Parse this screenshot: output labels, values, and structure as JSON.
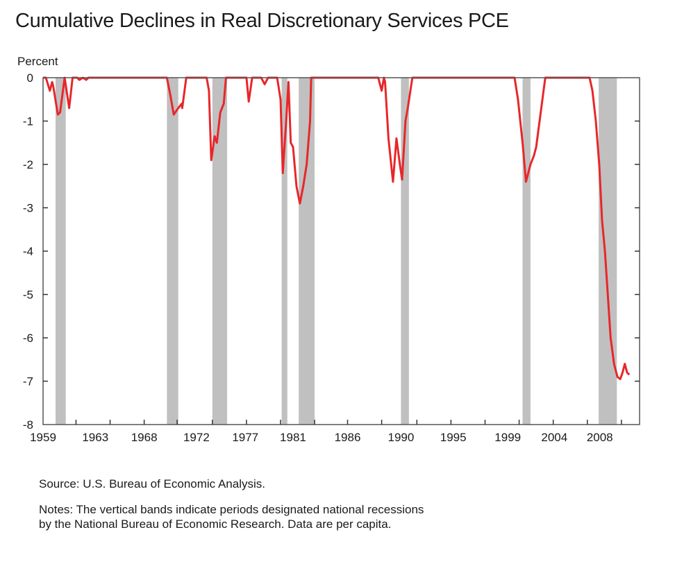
{
  "chart_data": {
    "type": "line",
    "title": "Cumulative Declines in Real Discretionary Services PCE",
    "ylabel": "Percent",
    "xlabel": "",
    "xlim": [
      1959.0,
      2011.5
    ],
    "ylim": [
      -8,
      0
    ],
    "yticks": [
      0,
      -1,
      -2,
      -3,
      -4,
      -5,
      -6,
      -7,
      -8
    ],
    "xtick_labels": [
      "1959",
      "1963",
      "1968",
      "1972",
      "1977",
      "1981",
      "1986",
      "1990",
      "1995",
      "1999",
      "2004",
      "2008"
    ],
    "xtick_label_positions": [
      1959.0,
      1963.6,
      1967.9,
      1972.5,
      1976.8,
      1981.0,
      1985.8,
      1990.5,
      1995.1,
      1999.9,
      2004.0,
      2008.0
    ],
    "xtick_marks": [
      1961.9,
      1964.9,
      1967.9,
      1970.8,
      1973.9,
      1976.9,
      1979.9,
      1982.9,
      1985.8,
      1988.8,
      1991.9,
      1994.9,
      1997.9,
      2000.9,
      2003.9,
      2006.9,
      2009.9
    ],
    "grid": false,
    "recessions": [
      [
        1960.1,
        1961.0
      ],
      [
        1969.9,
        1970.9
      ],
      [
        1973.9,
        1975.2
      ],
      [
        1980.0,
        1980.5
      ],
      [
        1981.5,
        1982.9
      ],
      [
        1990.5,
        1991.2
      ],
      [
        2001.2,
        2001.9
      ],
      [
        2007.9,
        2009.5
      ]
    ],
    "recession_color": "#c0c0c0",
    "series": [
      {
        "name": "Cumulative decline",
        "color": "#e8262a",
        "x": [
          1959.0,
          1959.25,
          1959.6,
          1959.8,
          1959.9,
          1960.3,
          1960.5,
          1960.9,
          1961.3,
          1961.6,
          1962.0,
          1962.2,
          1962.5,
          1962.8,
          1963.0,
          1969.9,
          1970.2,
          1970.5,
          1970.9,
          1971.2,
          1971.25,
          1971.6,
          1973.4,
          1973.6,
          1973.8,
          1974.1,
          1974.3,
          1974.6,
          1974.9,
          1975.1,
          1976.9,
          1977.1,
          1977.4,
          1978.2,
          1978.5,
          1978.8,
          1979.6,
          1979.9,
          1980.1,
          1980.4,
          1980.6,
          1980.8,
          1981.0,
          1981.3,
          1981.6,
          1981.9,
          1982.2,
          1982.5,
          1982.6,
          1988.5,
          1988.8,
          1989.0,
          1989.1,
          1989.4,
          1989.8,
          1990.1,
          1990.4,
          1990.6,
          1990.9,
          1991.1,
          1991.5,
          2000.5,
          2000.8,
          2001.2,
          2001.5,
          2001.9,
          2002.2,
          2002.4,
          2002.7,
          2003.2,
          2007.1,
          2007.35,
          2007.65,
          2007.95,
          2008.2,
          2008.45,
          2008.7,
          2008.95,
          2009.25,
          2009.55,
          2009.8,
          2010.0,
          2010.2,
          2010.4,
          2010.6
        ],
        "y": [
          0,
          0,
          -0.3,
          -0.1,
          -0.2,
          -0.85,
          -0.8,
          0,
          -0.7,
          0,
          0,
          -0.05,
          0,
          -0.05,
          0,
          0,
          -0.4,
          -0.85,
          -0.7,
          -0.6,
          -0.7,
          0,
          0,
          -0.3,
          -1.9,
          -1.35,
          -1.5,
          -0.8,
          -0.6,
          0,
          0,
          -0.55,
          0,
          0,
          -0.15,
          0,
          0,
          -0.5,
          -2.2,
          -1.0,
          -0.1,
          -1.5,
          -1.6,
          -2.5,
          -2.9,
          -2.5,
          -2.0,
          -1.0,
          0,
          0,
          -0.3,
          0,
          -0.1,
          -1.4,
          -2.4,
          -1.4,
          -2.0,
          -2.35,
          -1.0,
          -0.7,
          0,
          0,
          -0.5,
          -1.5,
          -2.4,
          -2.0,
          -1.8,
          -1.6,
          -1.0,
          0,
          0,
          -0.3,
          -1.0,
          -2.0,
          -3.3,
          -4.0,
          -5.0,
          -6.0,
          -6.6,
          -6.9,
          -6.95,
          -6.8,
          -6.6,
          -6.8,
          -6.85
        ]
      }
    ],
    "annotations": []
  },
  "footer": {
    "source": "Source: U.S. Bureau of Economic Analysis.",
    "notes_line1": "Notes: The vertical bands indicate periods designated national recessions",
    "notes_line2": "by the National Bureau of Economic Research. Data are per capita."
  }
}
